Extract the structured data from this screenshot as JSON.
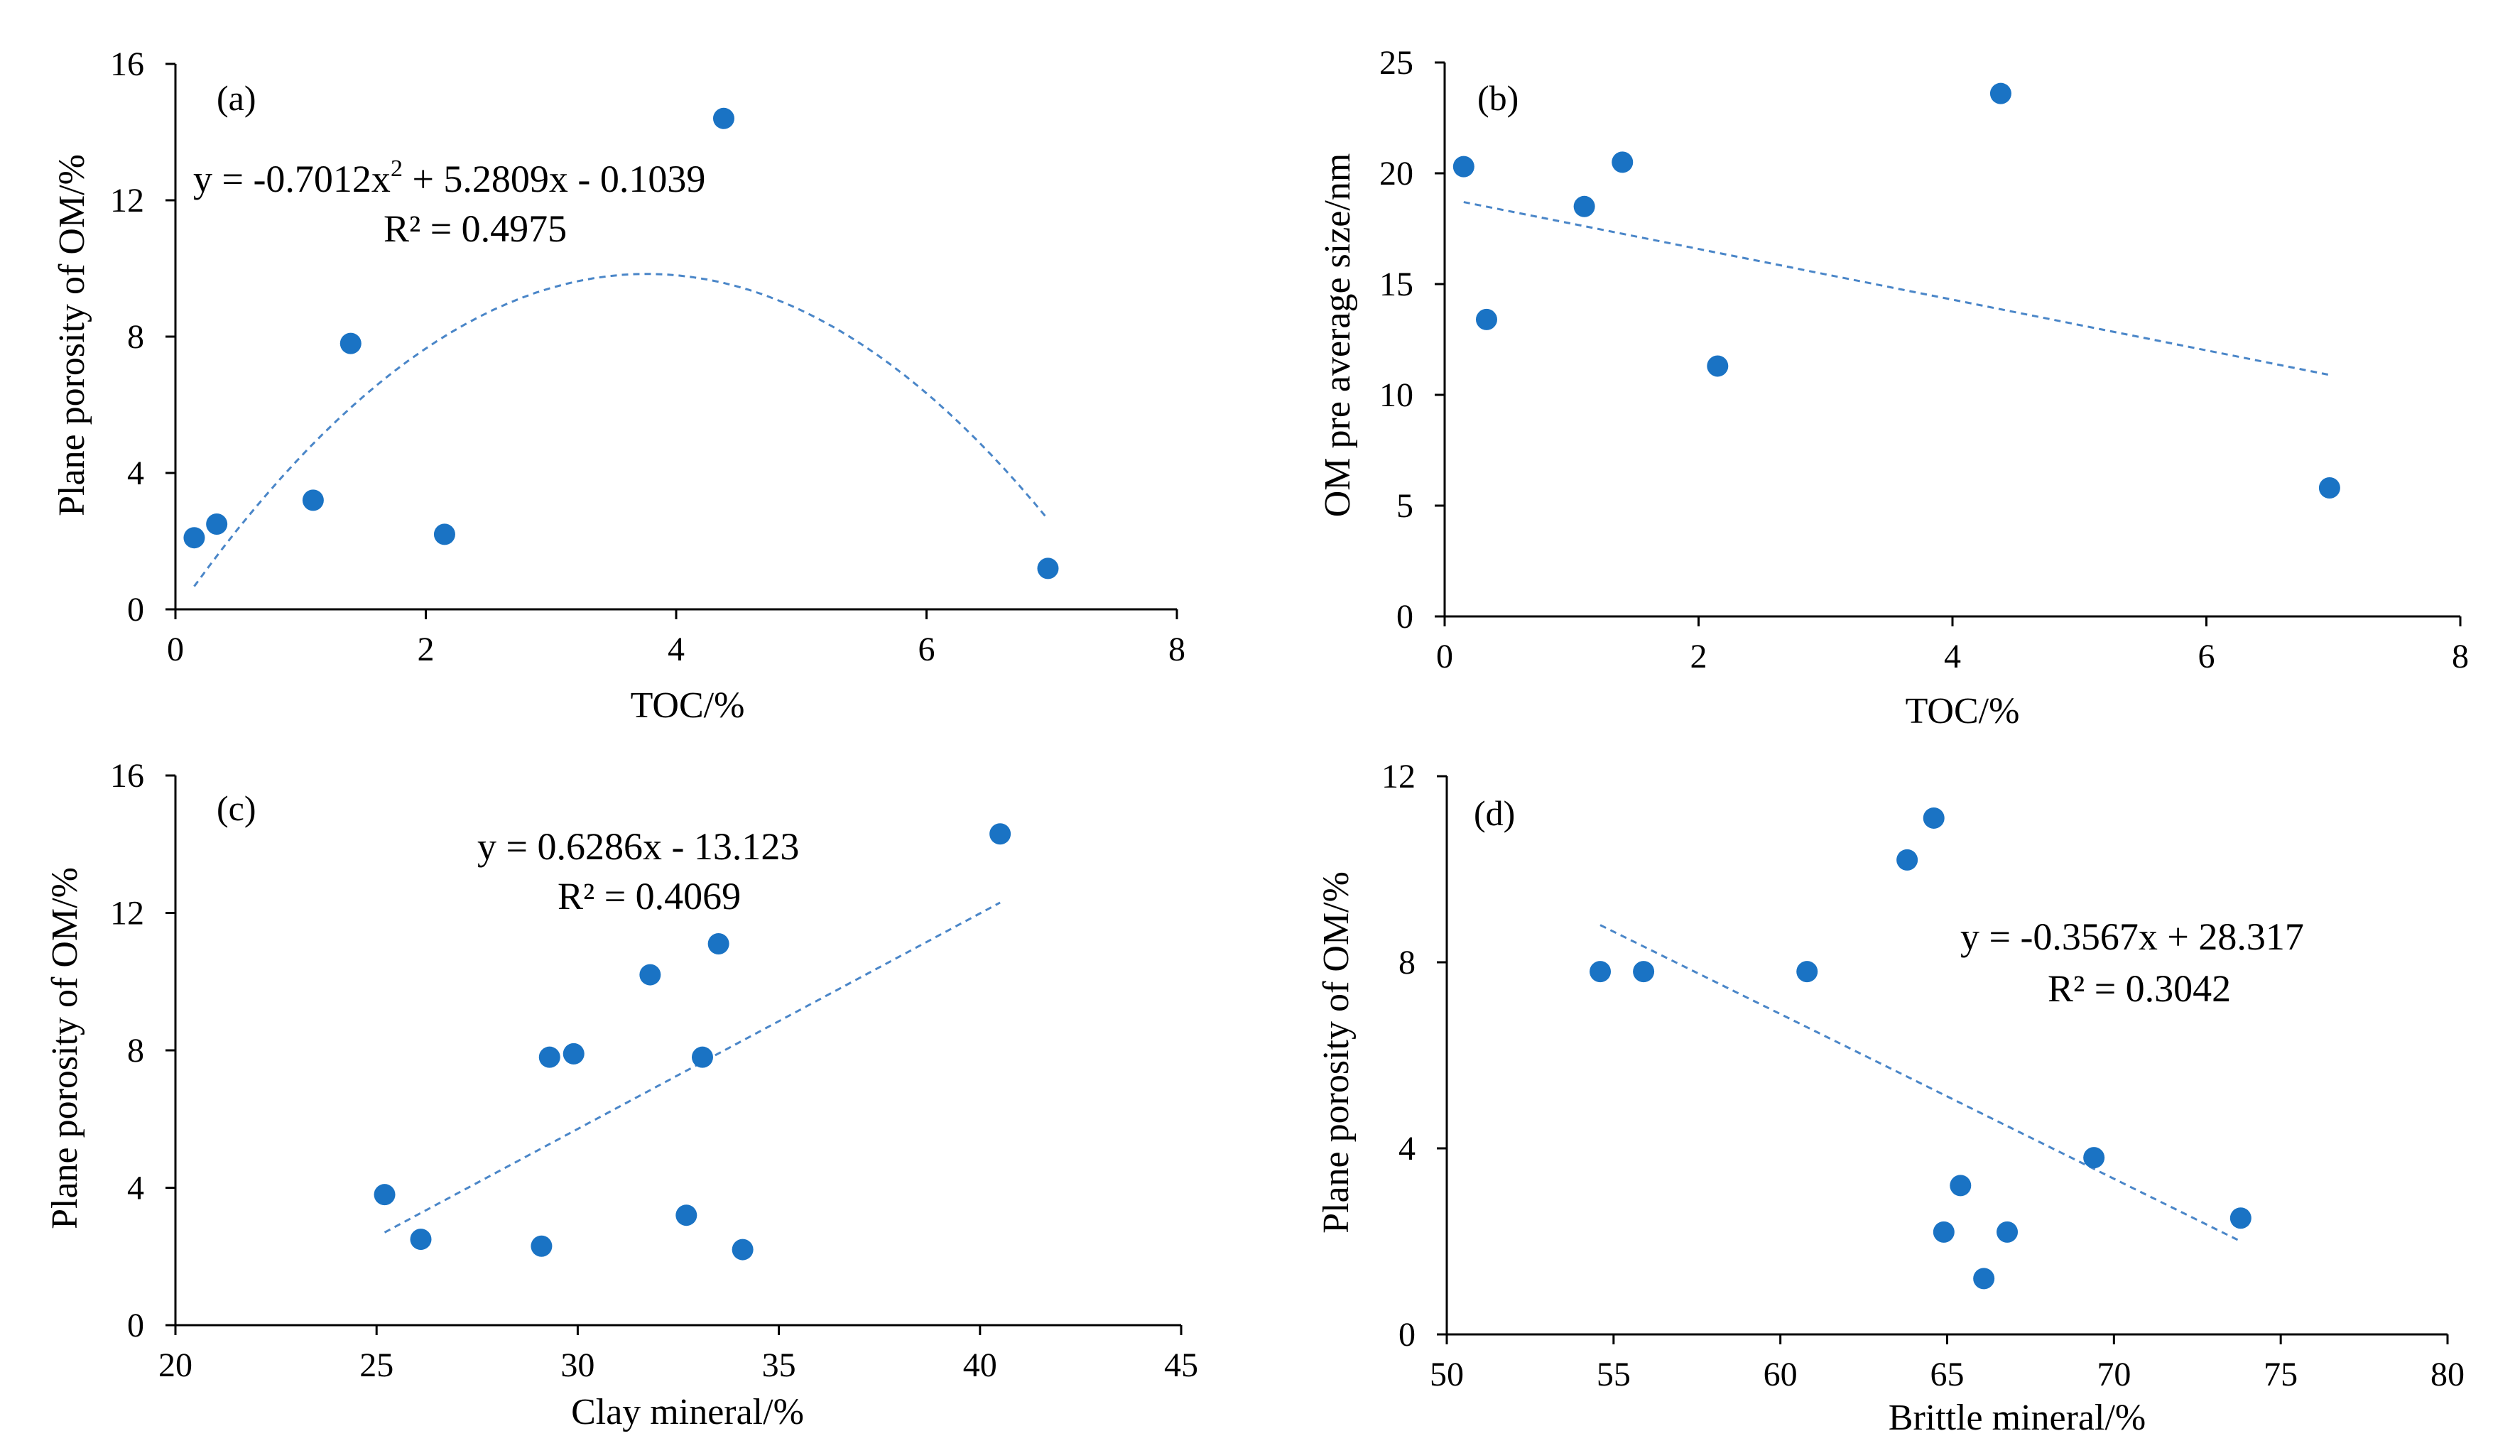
{
  "chart_data": [
    {
      "id": "a",
      "type": "scatter",
      "panel_label": "(a)",
      "xlabel": "TOC/%",
      "ylabel": "Plane porosity of OM/%",
      "xlim": [
        0,
        8
      ],
      "ylim": [
        0,
        16
      ],
      "xticks": [
        "0",
        "2",
        "4",
        "6",
        "8"
      ],
      "yticks": [
        "0",
        "4",
        "8",
        "12",
        "16"
      ],
      "points": [
        {
          "x": 0.15,
          "y": 2.1
        },
        {
          "x": 0.33,
          "y": 2.5
        },
        {
          "x": 1.1,
          "y": 3.2
        },
        {
          "x": 1.4,
          "y": 7.8
        },
        {
          "x": 2.15,
          "y": 2.2
        },
        {
          "x": 4.38,
          "y": 14.4
        },
        {
          "x": 6.97,
          "y": 1.2
        }
      ],
      "trendline": {
        "kind": "poly2",
        "a": -0.7012,
        "b": 5.2809,
        "c": -0.1039,
        "x_from": 0.15,
        "x_to": 6.97
      },
      "equation": {
        "prefix": "y = -0.7012x",
        "exp": "2",
        "suffix": " + 5.2809x - 0.1039",
        "r2": "R² = 0.4975"
      }
    },
    {
      "id": "b",
      "type": "scatter",
      "panel_label": "(b)",
      "xlabel": "TOC/%",
      "ylabel": "OM pre average size/nm",
      "xlim": [
        0,
        8
      ],
      "ylim": [
        0,
        25
      ],
      "xticks": [
        "0",
        "2",
        "4",
        "6",
        "8"
      ],
      "yticks": [
        "0",
        "5",
        "10",
        "15",
        "20",
        "25"
      ],
      "points": [
        {
          "x": 0.15,
          "y": 20.3
        },
        {
          "x": 0.33,
          "y": 13.4
        },
        {
          "x": 1.1,
          "y": 18.5
        },
        {
          "x": 1.4,
          "y": 20.5
        },
        {
          "x": 2.15,
          "y": 11.3
        },
        {
          "x": 4.38,
          "y": 23.6
        },
        {
          "x": 6.97,
          "y": 5.8
        }
      ],
      "trendline": {
        "kind": "linear",
        "x1": 0.15,
        "y1": 18.7,
        "x2": 6.97,
        "y2": 10.9
      }
    },
    {
      "id": "c",
      "type": "scatter",
      "panel_label": "(c)",
      "xlabel": "Clay mineral/%",
      "ylabel": "Plane porosity of OM/%",
      "xlim": [
        20,
        45
      ],
      "ylim": [
        0,
        16
      ],
      "xticks": [
        "20",
        "25",
        "30",
        "35",
        "40",
        "45"
      ],
      "yticks": [
        "0",
        "4",
        "8",
        "12",
        "16"
      ],
      "points": [
        {
          "x": 25.2,
          "y": 3.8
        },
        {
          "x": 26.1,
          "y": 2.5
        },
        {
          "x": 29.1,
          "y": 2.3
        },
        {
          "x": 29.3,
          "y": 7.8
        },
        {
          "x": 29.9,
          "y": 7.9
        },
        {
          "x": 31.8,
          "y": 10.2
        },
        {
          "x": 32.7,
          "y": 3.2
        },
        {
          "x": 33.1,
          "y": 7.8
        },
        {
          "x": 33.5,
          "y": 11.1
        },
        {
          "x": 34.1,
          "y": 2.2
        },
        {
          "x": 40.5,
          "y": 14.3
        }
      ],
      "trendline": {
        "kind": "linear",
        "x1": 25.2,
        "y1": 2.7,
        "x2": 40.5,
        "y2": 12.3
      },
      "equation": {
        "text": "y = 0.6286x - 13.123",
        "r2": "R² = 0.4069"
      }
    },
    {
      "id": "d",
      "type": "scatter",
      "panel_label": "(d)",
      "xlabel": "Brittle mineral/%",
      "ylabel": "Plane porosity of OM/%",
      "xlim": [
        50,
        80
      ],
      "ylim": [
        0,
        12
      ],
      "xticks": [
        "50",
        "55",
        "60",
        "65",
        "70",
        "75",
        "80"
      ],
      "yticks": [
        "0",
        "4",
        "8",
        "12"
      ],
      "points": [
        {
          "x": 54.6,
          "y": 7.8
        },
        {
          "x": 55.9,
          "y": 7.8
        },
        {
          "x": 60.8,
          "y": 7.8
        },
        {
          "x": 63.8,
          "y": 10.2
        },
        {
          "x": 64.6,
          "y": 11.1
        },
        {
          "x": 64.9,
          "y": 2.2
        },
        {
          "x": 65.4,
          "y": 3.2
        },
        {
          "x": 66.1,
          "y": 1.2
        },
        {
          "x": 66.8,
          "y": 2.2
        },
        {
          "x": 69.4,
          "y": 3.8
        },
        {
          "x": 73.8,
          "y": 2.5
        }
      ],
      "trendline": {
        "kind": "linear",
        "x1": 54.6,
        "y1": 8.8,
        "x2": 73.8,
        "y2": 2.0
      },
      "equation": {
        "text": "y = -0.3567x + 28.317",
        "r2": "R² = 0.3042"
      }
    }
  ],
  "colors": {
    "marker": "#1a73c4",
    "trend": "#4a86c8",
    "axis": "#000000"
  }
}
